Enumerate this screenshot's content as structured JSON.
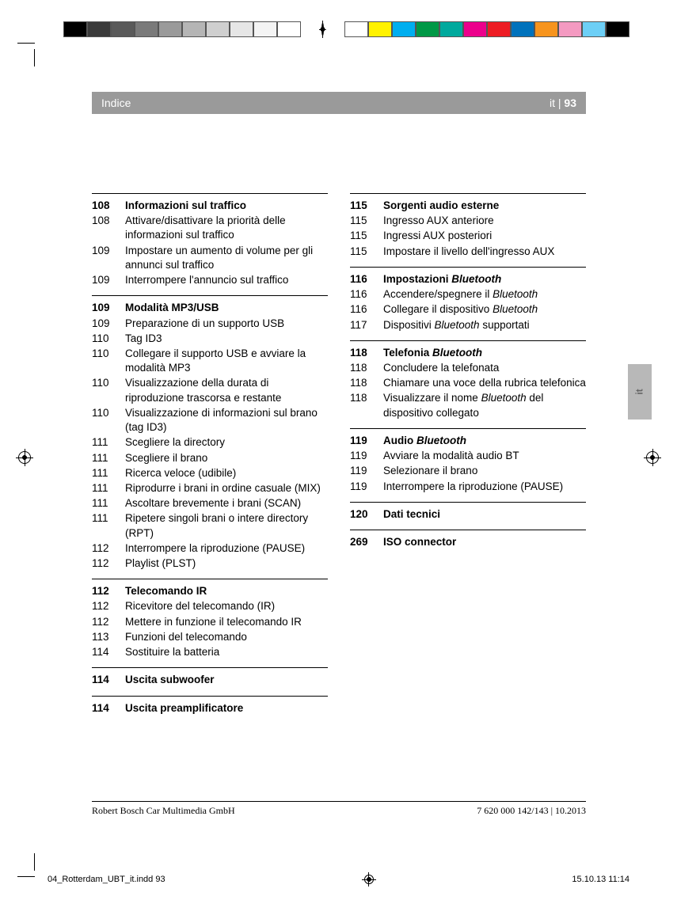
{
  "colorbar": {
    "left": [
      "#000000",
      "#3a3a3a",
      "#5a5a5a",
      "#7a7a7a",
      "#9a9a9a",
      "#b5b5b5",
      "#cfcfcf",
      "#e6e6e6",
      "#f4f4f4",
      "#ffffff"
    ],
    "right": [
      "#ffffff",
      "#fff200",
      "#00aeef",
      "#009846",
      "#00a99d",
      "#ec008c",
      "#ed1c24",
      "#0072bc",
      "#f7941d",
      "#f49ac1",
      "#6dcff6",
      "#000000"
    ]
  },
  "header": {
    "title": "Indice",
    "lang": "it",
    "sep": " | ",
    "page": "93"
  },
  "langtab": "it",
  "toc": {
    "left": [
      {
        "heading": {
          "page": "108",
          "text": "Informazioni sul traffico"
        },
        "items": [
          {
            "page": "108",
            "text": "Attivare/disattivare la priorità delle informazioni sul traffico"
          },
          {
            "page": "109",
            "text": "Impostare un aumento di volume per gli annunci sul traffico"
          },
          {
            "page": "109",
            "text": "Interrompere l'annuncio sul traffico"
          }
        ]
      },
      {
        "heading": {
          "page": "109",
          "text": "Modalità MP3/USB"
        },
        "items": [
          {
            "page": "109",
            "text": "Preparazione di un supporto USB"
          },
          {
            "page": "110",
            "text": "Tag ID3"
          },
          {
            "page": "110",
            "text": "Collegare il supporto USB e avviare la modalità MP3"
          },
          {
            "page": "110",
            "text": "Visualizzazione della durata di riproduzione trascorsa e restante"
          },
          {
            "page": "110",
            "text": "Visualizzazione di informazioni sul brano (tag ID3)"
          },
          {
            "page": "111",
            "text": "Scegliere la directory"
          },
          {
            "page": "111",
            "text": "Scegliere il brano"
          },
          {
            "page": "111",
            "text": "Ricerca veloce (udibile)"
          },
          {
            "page": "111",
            "text": "Riprodurre i brani in ordine casuale (MIX)"
          },
          {
            "page": "111",
            "text": "Ascoltare brevemente i brani (SCAN)"
          },
          {
            "page": "111",
            "text": "Ripetere singoli brani o intere directory (RPT)"
          },
          {
            "page": "112",
            "text": "Interrompere la riproduzione (PAUSE)"
          },
          {
            "page": "112",
            "text": "Playlist (PLST)"
          }
        ]
      },
      {
        "heading": {
          "page": "112",
          "text": "Telecomando IR"
        },
        "items": [
          {
            "page": "112",
            "text": "Ricevitore del telecomando (IR)"
          },
          {
            "page": "112",
            "text": "Mettere in funzione il telecomando IR"
          },
          {
            "page": "113",
            "text": "Funzioni del telecomando"
          },
          {
            "page": "114",
            "text": "Sostituire la batteria"
          }
        ]
      },
      {
        "heading": {
          "page": "114",
          "text": "Uscita subwoofer"
        },
        "items": []
      },
      {
        "heading": {
          "page": "114",
          "text": "Uscita preamplificatore"
        },
        "items": []
      }
    ],
    "right": [
      {
        "heading": {
          "page": "115",
          "text": "Sorgenti audio esterne"
        },
        "items": [
          {
            "page": "115",
            "text": "Ingresso AUX anteriore"
          },
          {
            "page": "115",
            "text": "Ingressi AUX posteriori"
          },
          {
            "page": "115",
            "text": "Impostare il livello dell'ingresso AUX"
          }
        ]
      },
      {
        "heading": {
          "page": "116",
          "html": "Impostazioni <em>Bluetooth</em>"
        },
        "items": [
          {
            "page": "116",
            "html": "Accendere/spegnere il <em>Bluetooth</em>"
          },
          {
            "page": "116",
            "html": "Collegare il dispositivo <em>Bluetooth</em>"
          },
          {
            "page": "117",
            "html": "Dispositivi <em>Bluetooth</em> supportati"
          }
        ]
      },
      {
        "heading": {
          "page": "118",
          "html": "Telefonia <em>Bluetooth</em>"
        },
        "items": [
          {
            "page": "118",
            "text": "Concludere la telefonata"
          },
          {
            "page": "118",
            "text": "Chiamare una voce della rubrica telefonica"
          },
          {
            "page": "118",
            "html": "Visualizzare il nome <em>Bluetooth</em> del dispositivo collegato"
          }
        ]
      },
      {
        "heading": {
          "page": "119",
          "html": "Audio <em>Bluetooth</em>"
        },
        "items": [
          {
            "page": "119",
            "text": "Avviare la modalità audio BT"
          },
          {
            "page": "119",
            "text": "Selezionare il brano"
          },
          {
            "page": "119",
            "text": "Interrompere la riproduzione (PAUSE)"
          }
        ]
      },
      {
        "heading": {
          "page": "120",
          "text": "Dati tecnici"
        },
        "items": []
      },
      {
        "heading": {
          "page": "269",
          "text": "ISO connector"
        },
        "items": []
      }
    ]
  },
  "footer": {
    "left": "Robert Bosch Car Multimedia GmbH",
    "right": "7 620 000 142/143 | 10.2013"
  },
  "slug": {
    "file": "04_Rotterdam_UBT_it.indd   93",
    "ts": "15.10.13   11:14"
  }
}
